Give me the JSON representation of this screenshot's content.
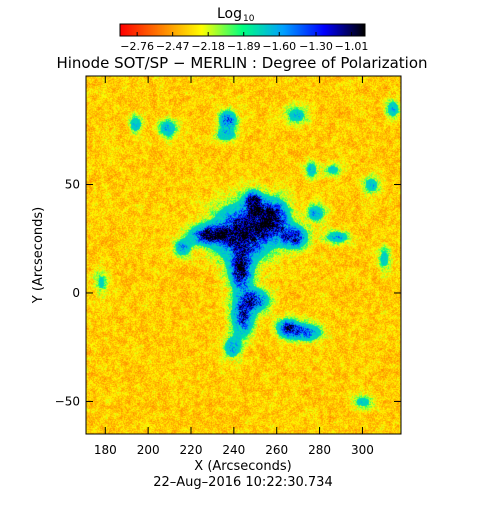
{
  "chart_data": {
    "type": "heatmap",
    "title": "Hinode SOT/SP − MERLIN : Degree of Polarization",
    "timestamp": "22–Aug–2016 10:22:30.734",
    "xlabel": "X (Arcseconds)",
    "ylabel": "Y (Arcseconds)",
    "xlim": [
      171,
      318
    ],
    "ylim": [
      -65,
      100
    ],
    "xticks": [
      180,
      200,
      220,
      240,
      260,
      280,
      300
    ],
    "yticks": [
      -50,
      0,
      50
    ],
    "colorbar": {
      "label": "Log",
      "label_sub": "10",
      "range": [
        -2.9,
        -0.9
      ],
      "ticks": [
        "−2.76",
        "−2.47",
        "−2.18",
        "−1.89",
        "−1.60",
        "−1.30",
        "−1.01"
      ],
      "colormap": [
        "#ff0000",
        "#ff8000",
        "#ffff00",
        "#00ff80",
        "#00a0ff",
        "#0000ff",
        "#000000"
      ]
    },
    "features": [
      {
        "x": 244,
        "y": 28,
        "strength": 1.0,
        "sx": 13,
        "sy": 12
      },
      {
        "x": 228,
        "y": 27,
        "strength": 0.9,
        "sx": 8,
        "sy": 4
      },
      {
        "x": 258,
        "y": 35,
        "strength": 0.9,
        "sx": 7,
        "sy": 8
      },
      {
        "x": 268,
        "y": 26,
        "strength": 0.8,
        "sx": 6,
        "sy": 5
      },
      {
        "x": 249,
        "y": 42,
        "strength": 0.8,
        "sx": 4,
        "sy": 5
      },
      {
        "x": 243,
        "y": 10,
        "strength": 0.9,
        "sx": 5,
        "sy": 8
      },
      {
        "x": 244,
        "y": -10,
        "strength": 0.8,
        "sx": 5,
        "sy": 9
      },
      {
        "x": 250,
        "y": -3,
        "strength": 0.7,
        "sx": 6,
        "sy": 5
      },
      {
        "x": 265,
        "y": -16,
        "strength": 0.8,
        "sx": 5,
        "sy": 4
      },
      {
        "x": 274,
        "y": -18,
        "strength": 0.6,
        "sx": 7,
        "sy": 4
      },
      {
        "x": 239,
        "y": -25,
        "strength": 0.5,
        "sx": 4,
        "sy": 5
      },
      {
        "x": 216,
        "y": 21,
        "strength": 0.5,
        "sx": 4,
        "sy": 4
      },
      {
        "x": 288,
        "y": 26,
        "strength": 0.45,
        "sx": 6,
        "sy": 3
      },
      {
        "x": 278,
        "y": 37,
        "strength": 0.5,
        "sx": 4,
        "sy": 4
      },
      {
        "x": 237,
        "y": 80,
        "strength": 0.7,
        "sx": 4,
        "sy": 4
      },
      {
        "x": 236,
        "y": 73,
        "strength": 0.45,
        "sx": 5,
        "sy": 3
      },
      {
        "x": 209,
        "y": 76,
        "strength": 0.5,
        "sx": 4,
        "sy": 4
      },
      {
        "x": 194,
        "y": 78,
        "strength": 0.45,
        "sx": 3,
        "sy": 4
      },
      {
        "x": 269,
        "y": 82,
        "strength": 0.4,
        "sx": 5,
        "sy": 4
      },
      {
        "x": 276,
        "y": 57,
        "strength": 0.4,
        "sx": 3,
        "sy": 4
      },
      {
        "x": 286,
        "y": 57,
        "strength": 0.35,
        "sx": 4,
        "sy": 3
      },
      {
        "x": 304,
        "y": 50,
        "strength": 0.4,
        "sx": 4,
        "sy": 4
      },
      {
        "x": 314,
        "y": 85,
        "strength": 0.5,
        "sx": 3,
        "sy": 4
      },
      {
        "x": 300,
        "y": -50,
        "strength": 0.35,
        "sx": 5,
        "sy": 3
      },
      {
        "x": 310,
        "y": 16,
        "strength": 0.35,
        "sx": 3,
        "sy": 6
      },
      {
        "x": 178,
        "y": 5,
        "strength": 0.3,
        "sx": 3,
        "sy": 6
      }
    ]
  }
}
